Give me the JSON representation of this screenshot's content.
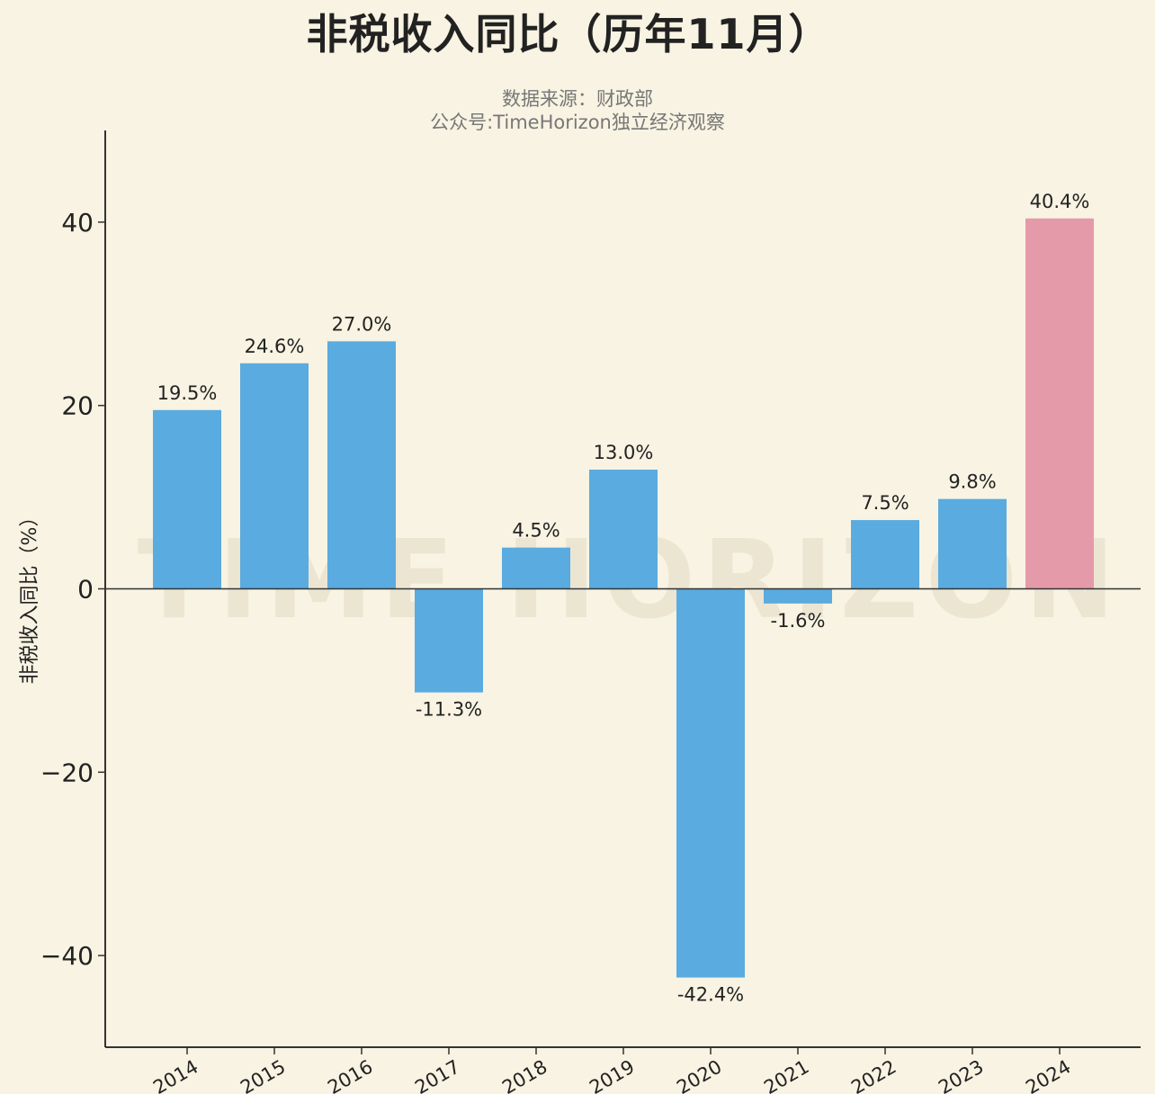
{
  "chart_data": {
    "type": "bar",
    "title": "非税收入同比（历年11月）",
    "subtitle": "数据来源：财政部",
    "credit": "公众号:TimeHorizon独立经济观察",
    "watermark": "TIME HORIZON",
    "ylabel": "非税收入同比（%）",
    "xlabel": "",
    "ylim": [
      -50,
      50
    ],
    "yticks": [
      -40,
      -20,
      0,
      20,
      40
    ],
    "ytick_labels": [
      "−40",
      "−20",
      "0",
      "20",
      "40"
    ],
    "categories": [
      "2014",
      "2015",
      "2016",
      "2017",
      "2018",
      "2019",
      "2020",
      "2021",
      "2022",
      "2023",
      "2024"
    ],
    "values": [
      19.5,
      24.6,
      27.0,
      -11.3,
      4.5,
      13.0,
      -42.4,
      -1.6,
      7.5,
      9.8,
      40.4
    ],
    "data_labels": [
      "19.5%",
      "24.6%",
      "27.0%",
      "-11.3%",
      "4.5%",
      "13.0%",
      "-42.4%",
      "-1.6%",
      "7.5%",
      "9.8%",
      "40.4%"
    ],
    "colors": [
      "#5aabdf",
      "#5aabdf",
      "#5aabdf",
      "#5aabdf",
      "#5aabdf",
      "#5aabdf",
      "#5aabdf",
      "#5aabdf",
      "#5aabdf",
      "#5aabdf",
      "#e59aaa"
    ],
    "grid": false,
    "legend": "none"
  }
}
